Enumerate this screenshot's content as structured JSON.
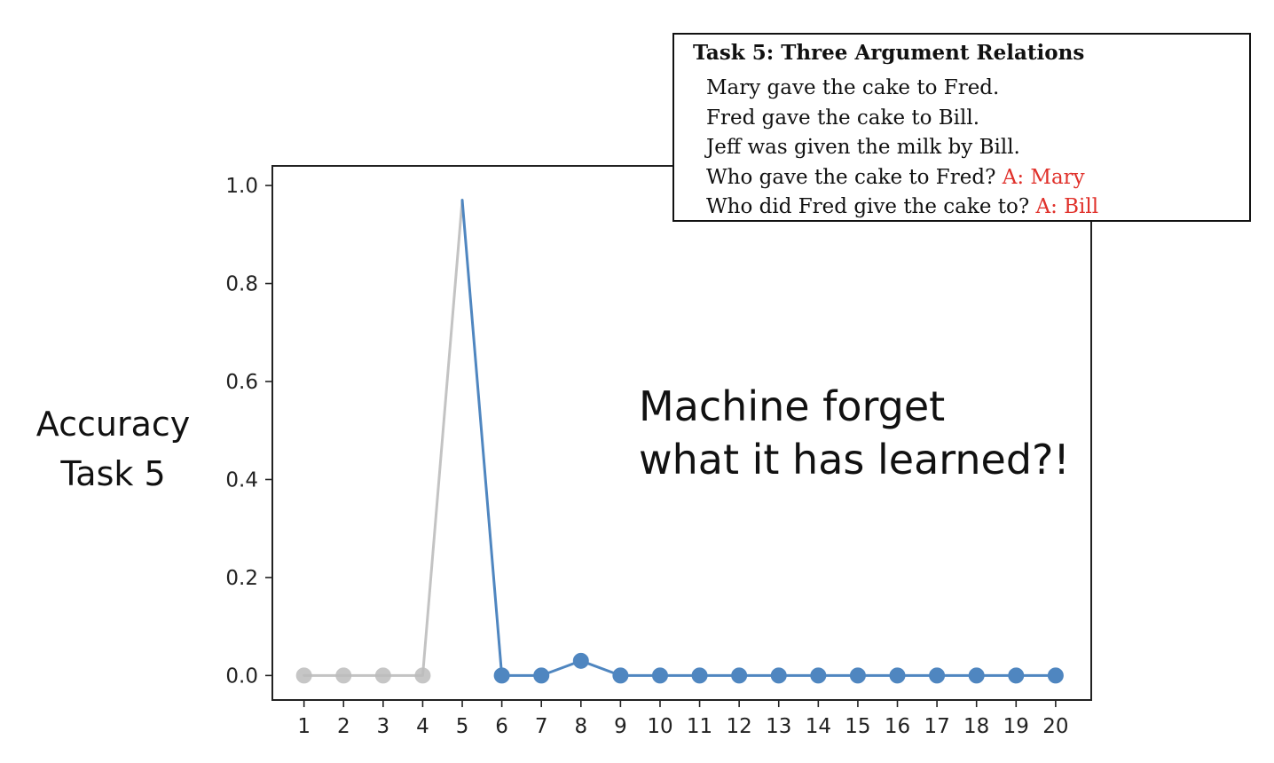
{
  "chart_data": {
    "type": "line",
    "x": [
      1,
      2,
      3,
      4,
      5,
      6,
      7,
      8,
      9,
      10,
      11,
      12,
      13,
      14,
      15,
      16,
      17,
      18,
      19,
      20
    ],
    "x_tick_labels": [
      "1",
      "2",
      "3",
      "4",
      "5",
      "6",
      "7",
      "8",
      "9",
      "10",
      "11",
      "12",
      "13",
      "14",
      "15",
      "16",
      "17",
      "18",
      "19",
      "20"
    ],
    "y_tick_labels": [
      "0.0",
      "0.2",
      "0.4",
      "0.6",
      "0.8",
      "1.0"
    ],
    "y_ticks": [
      0.0,
      0.2,
      0.4,
      0.6,
      0.8,
      1.0
    ],
    "series": [
      {
        "color": "#bdbdbd",
        "x": [
          1,
          2,
          3,
          4,
          5
        ],
        "values": [
          0.0,
          0.0,
          0.0,
          0.0,
          0.97
        ],
        "markers_on": [
          1,
          2,
          3,
          4
        ]
      },
      {
        "color": "#4f86c0",
        "x": [
          5,
          6,
          7,
          8,
          9,
          10,
          11,
          12,
          13,
          14,
          15,
          16,
          17,
          18,
          19,
          20
        ],
        "values": [
          0.97,
          0.0,
          0.0,
          0.03,
          0.0,
          0.0,
          0.0,
          0.0,
          0.0,
          0.0,
          0.0,
          0.0,
          0.0,
          0.0,
          0.0,
          0.0
        ],
        "markers_on": [
          6,
          7,
          8,
          9,
          10,
          11,
          12,
          13,
          14,
          15,
          16,
          17,
          18,
          19,
          20
        ]
      }
    ],
    "xlim": [
      0.2,
      20.9
    ],
    "ylim": [
      -0.05,
      1.04
    ],
    "grid": false,
    "ylabel_lines": [
      "Accuracy",
      "Task 5"
    ]
  },
  "annotation": {
    "line1": "Machine forget",
    "line2": "what it has learned?!"
  },
  "task_box": {
    "title": "Task 5:  Three Argument Relations",
    "lines": [
      {
        "text": "Mary gave the cake to Fred.",
        "answer": ""
      },
      {
        "text": "Fred gave the cake to Bill.",
        "answer": ""
      },
      {
        "text": "Jeff was given the milk by Bill.",
        "answer": ""
      },
      {
        "text": "Who gave the cake to Fred? ",
        "answer": "A: Mary"
      },
      {
        "text": "Who did Fred give the cake to? ",
        "answer": "A: Bill"
      }
    ],
    "answer_color": "#e0302a"
  }
}
